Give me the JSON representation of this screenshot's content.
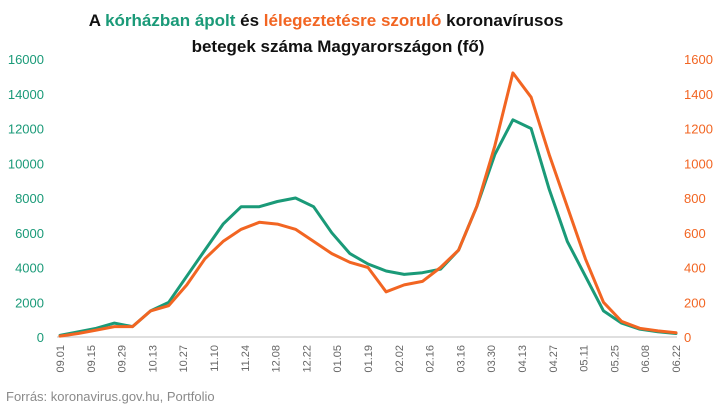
{
  "title": {
    "parts": [
      {
        "text": "A ",
        "color": "#111111"
      },
      {
        "text": "kórházban ápolt",
        "color": "#1a9a78"
      },
      {
        "text": " és ",
        "color": "#111111"
      },
      {
        "text": "lélegeztetésre szoruló",
        "color": "#f26522"
      },
      {
        "text": " koronavírusos",
        "color": "#111111"
      }
    ],
    "line2": "betegek száma Magyarországon  (fő)"
  },
  "source": "Forrás: koronavirus.gov.hu, Portfolio",
  "chart_data": {
    "type": "line",
    "x_tick_labels": [
      "09.01",
      "09.15",
      "09.29",
      "10.13",
      "10.27",
      "11.10",
      "11.24",
      "12.08",
      "12.22",
      "01.05",
      "01.19",
      "02.02",
      "02.16",
      "03.16",
      "03.30",
      "04.13",
      "04.27",
      "05.11",
      "05.25",
      "06.08",
      "06.22"
    ],
    "y_left": {
      "ylim": [
        0,
        16000
      ],
      "ticks": [
        "0",
        "2000",
        "4000",
        "6000",
        "8000",
        "10000",
        "12000",
        "14000",
        "16000"
      ],
      "color": "#1a9a78"
    },
    "y_right": {
      "ylim": [
        0,
        1600
      ],
      "ticks": [
        "0",
        "200",
        "400",
        "600",
        "800",
        "1000",
        "1200",
        "1400",
        "1600"
      ],
      "color": "#f26522"
    },
    "grid": false,
    "series": [
      {
        "axis": "left",
        "color": "#1a9a78",
        "values": [
          100,
          300,
          500,
          800,
          600,
          1500,
          2000,
          3500,
          5000,
          6500,
          7500,
          7500,
          7800,
          8000,
          7500,
          6000,
          4800,
          4200,
          3800,
          3600,
          3700,
          3900,
          5000,
          7500,
          10500,
          12500,
          12000,
          8500,
          5500,
          3500,
          1500,
          800,
          450,
          300,
          200
        ]
      },
      {
        "axis": "right",
        "color": "#f26522",
        "values": [
          5,
          20,
          40,
          60,
          60,
          150,
          180,
          300,
          450,
          550,
          620,
          660,
          650,
          620,
          550,
          480,
          430,
          400,
          260,
          300,
          320,
          400,
          500,
          750,
          1100,
          1520,
          1380,
          1050,
          750,
          450,
          200,
          90,
          50,
          35,
          25
        ]
      }
    ]
  }
}
